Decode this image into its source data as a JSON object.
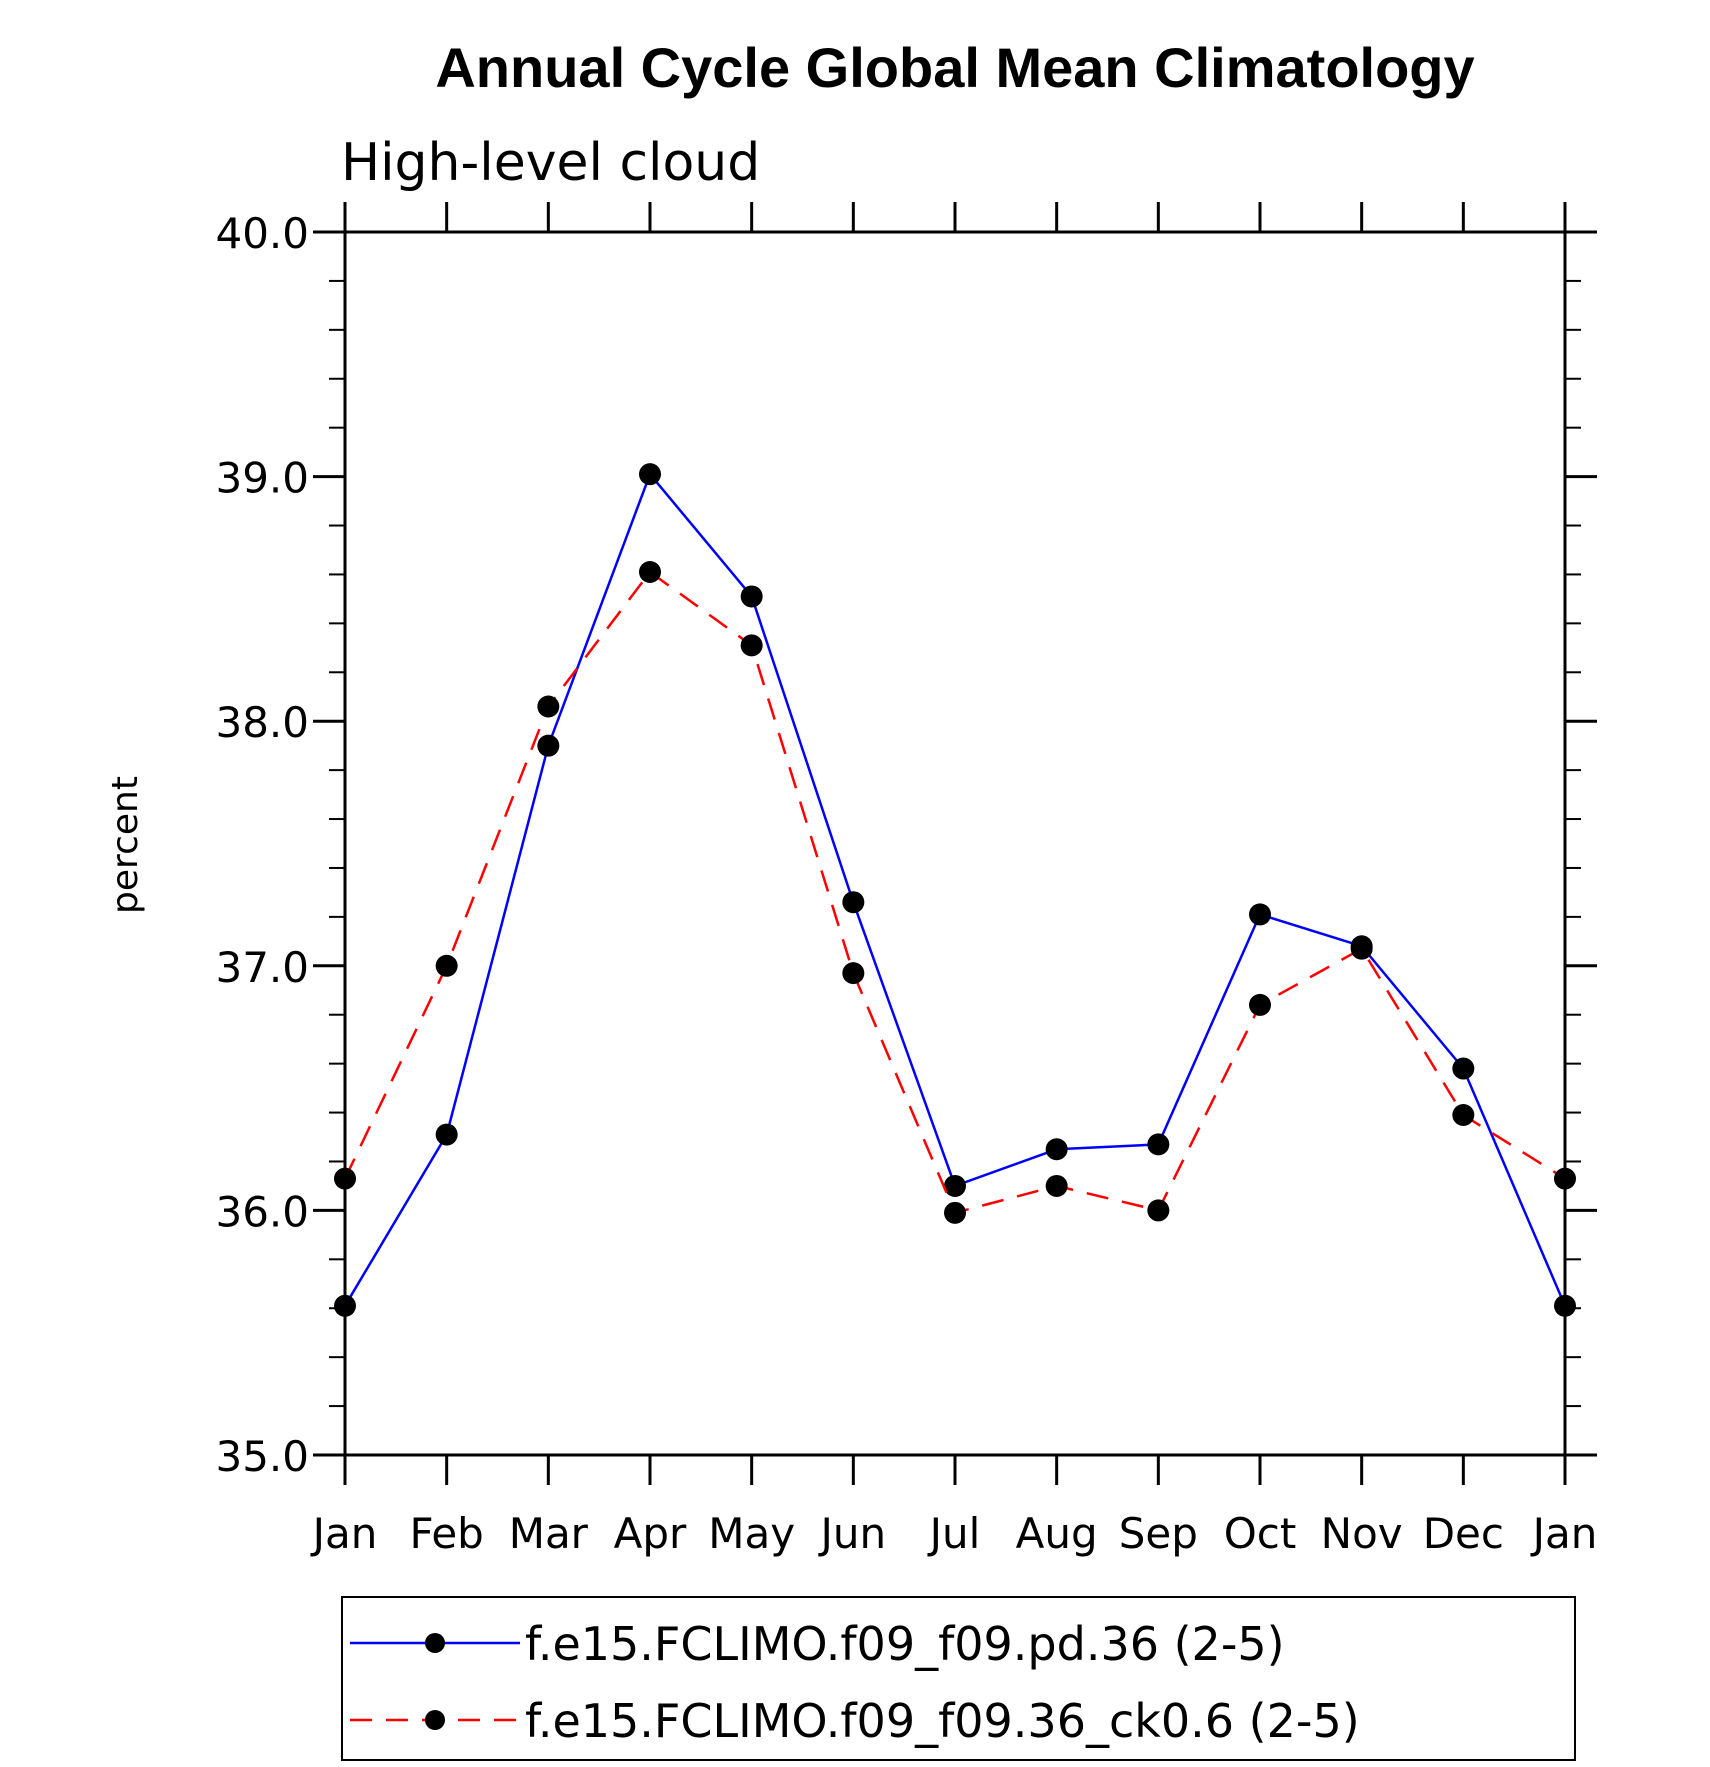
{
  "chart_data": {
    "type": "line",
    "title": "Annual Cycle Global Mean Climatology",
    "subtitle": "High-level cloud",
    "xlabel": "",
    "ylabel": "percent",
    "categories": [
      "Jan",
      "Feb",
      "Mar",
      "Apr",
      "May",
      "Jun",
      "Jul",
      "Aug",
      "Sep",
      "Oct",
      "Nov",
      "Dec",
      "Jan"
    ],
    "ylim": [
      35.0,
      40.0
    ],
    "yticks": [
      "35.0",
      "36.0",
      "37.0",
      "38.0",
      "39.0",
      "40.0"
    ],
    "yminor_step": 0.2,
    "series": [
      {
        "name": "f.e15.FCLIMO.f09_f09.pd.36 (2-5)",
        "color": "#0000ff",
        "dash": "solid",
        "marker": "filled-circle",
        "values": [
          35.61,
          36.31,
          37.9,
          39.01,
          38.51,
          37.26,
          36.1,
          36.25,
          36.27,
          37.21,
          37.08,
          36.58,
          35.61
        ]
      },
      {
        "name": "f.e15.FCLIMO.f09_f09.36_ck0.6 (2-5)",
        "color": "#ff0000",
        "dash": "dashed",
        "marker": "filled-circle",
        "values": [
          36.13,
          37.0,
          38.06,
          38.61,
          38.31,
          36.97,
          35.99,
          36.1,
          36.0,
          36.84,
          37.07,
          36.39,
          36.13
        ]
      }
    ],
    "legend_position": "bottom"
  }
}
